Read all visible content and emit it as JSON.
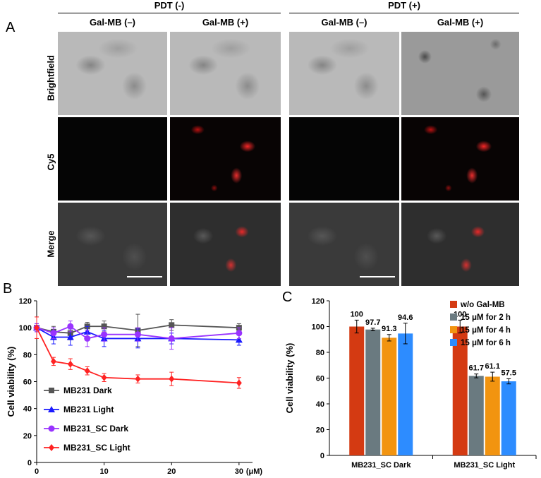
{
  "panel_a": {
    "letter": "A",
    "group_headers": [
      "PDT (-)",
      "PDT (+)"
    ],
    "column_headers": [
      "Gal-MB (–)",
      "Gal-MB (+)",
      "Gal-MB (–)",
      "Gal-MB (+)"
    ],
    "row_labels": [
      "Brightfield",
      "Cy5",
      "Merge"
    ]
  },
  "panel_b": {
    "letter": "B"
  },
  "panel_c": {
    "letter": "C"
  },
  "chart_data": [
    {
      "type": "line",
      "ylabel": "Cell viability (%)",
      "x_unit": "(μM)",
      "x": [
        0,
        2.5,
        5,
        7.5,
        10,
        15,
        20,
        30
      ],
      "xticks": [
        0,
        10,
        20,
        30
      ],
      "ylim": [
        0,
        120
      ],
      "yticks": [
        0,
        20,
        40,
        60,
        80,
        100,
        120
      ],
      "xlim": [
        0,
        32
      ],
      "legend_position": "bottom-left",
      "series": [
        {
          "name": "MB231 Dark",
          "marker": "square",
          "color": "#555555",
          "values": [
            100,
            97,
            96,
            101,
            101,
            98,
            102,
            100
          ],
          "errors": [
            3,
            4,
            5,
            3,
            4,
            12,
            4,
            3
          ]
        },
        {
          "name": "MB231 Light",
          "marker": "triangle",
          "color": "#1a1aff",
          "values": [
            100,
            93,
            93,
            97,
            92,
            92,
            92,
            91
          ],
          "errors": [
            3,
            5,
            6,
            4,
            6,
            7,
            4,
            4
          ]
        },
        {
          "name": "MB231_SC Dark",
          "marker": "circle",
          "color": "#9933ff",
          "values": [
            100,
            96,
            101,
            92,
            95,
            95,
            92,
            96
          ],
          "errors": [
            3,
            4,
            4,
            6,
            5,
            5,
            8,
            4
          ]
        },
        {
          "name": "MB231_SC Light",
          "marker": "diamond",
          "color": "#ff2222",
          "values": [
            100,
            75,
            73,
            68,
            63,
            62,
            62,
            59
          ],
          "errors": [
            8,
            3,
            4,
            3,
            3,
            3,
            5,
            4
          ]
        }
      ]
    },
    {
      "type": "bar",
      "ylabel": "Cell viability (%)",
      "categories": [
        "MB231_SC Dark",
        "MB231_SC Light"
      ],
      "ylim": [
        0,
        120
      ],
      "yticks": [
        0,
        20,
        40,
        60,
        80,
        100,
        120
      ],
      "legend_position": "top-right",
      "series": [
        {
          "name": "w/o Gal-MB",
          "color": "#d43a12",
          "values": [
            100,
            100
          ],
          "errors": [
            5,
            5
          ],
          "labels": [
            "100",
            "100"
          ]
        },
        {
          "name": "15 μM for 2 h",
          "color": "#6a7a80",
          "values": [
            97.7,
            61.7
          ],
          "errors": [
            1,
            1.5
          ],
          "labels": [
            "97.7",
            "61.7"
          ]
        },
        {
          "name": "15 μM for 4 h",
          "color": "#f29410",
          "values": [
            91.3,
            61.1
          ],
          "errors": [
            2.5,
            3.5
          ],
          "labels": [
            "91.3",
            "61.1"
          ]
        },
        {
          "name": "15 μM for 6 h",
          "color": "#2d8cff",
          "values": [
            94.6,
            57.5
          ],
          "errors": [
            8,
            2
          ],
          "labels": [
            "94.6",
            "57.5"
          ]
        }
      ]
    }
  ]
}
